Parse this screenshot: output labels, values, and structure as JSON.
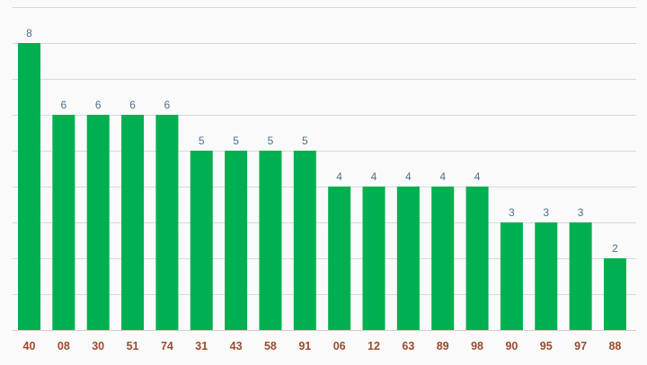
{
  "chart_data": {
    "type": "bar",
    "categories": [
      "40",
      "08",
      "30",
      "51",
      "74",
      "31",
      "43",
      "58",
      "91",
      "06",
      "12",
      "63",
      "89",
      "98",
      "90",
      "95",
      "97",
      "88"
    ],
    "values": [
      8,
      6,
      6,
      6,
      6,
      5,
      5,
      5,
      5,
      4,
      4,
      4,
      4,
      4,
      3,
      3,
      3,
      2
    ],
    "title": "",
    "xlabel": "",
    "ylabel": "",
    "ylim": [
      0,
      9
    ],
    "grid": true,
    "data_labels": true,
    "legend": "none",
    "colors": {
      "bar": "#00b050",
      "value_label": "#4f6f8f",
      "tick_label": "#9c4b2e",
      "grid": "#d9d9d9",
      "background": "#fafafa"
    }
  }
}
